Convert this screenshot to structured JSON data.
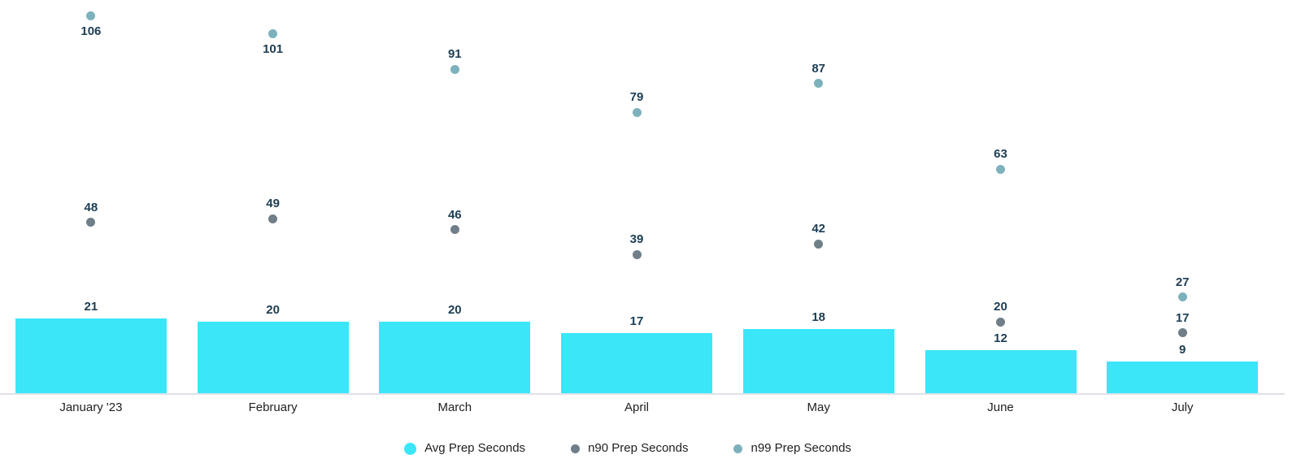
{
  "chart_data": {
    "type": "bar",
    "subtype": "combo-bar-scatter",
    "title": "",
    "xlabel": "",
    "ylabel": "",
    "ylim": [
      0,
      110
    ],
    "grid": false,
    "legend_position": "bottom",
    "value_labels_shown": true,
    "categories": [
      "January '23",
      "February",
      "March",
      "April",
      "May",
      "June",
      "July"
    ],
    "series": [
      {
        "name": "Avg Prep Seconds",
        "mark": "bar",
        "color": "#3be6f9",
        "values": [
          21,
          20,
          20,
          17,
          18,
          12,
          9
        ]
      },
      {
        "name": "n90 Prep Seconds",
        "mark": "point",
        "color": "#6f7e88",
        "values": [
          48,
          49,
          46,
          39,
          42,
          20,
          17
        ]
      },
      {
        "name": "n99 Prep Seconds",
        "mark": "point",
        "color": "#7db2bc",
        "values": [
          106,
          101,
          91,
          79,
          87,
          63,
          27
        ],
        "value_label_below": [
          true,
          true,
          false,
          false,
          false,
          false,
          false
        ]
      }
    ]
  },
  "colors": {
    "bar": "#3be6f9",
    "n90_point": "#6f7e88",
    "n99_point": "#7db2bc",
    "value_label": "#1d3d53",
    "axis_label": "#202124",
    "axis_line": "#dfe1e8",
    "background": "#ffffff"
  }
}
